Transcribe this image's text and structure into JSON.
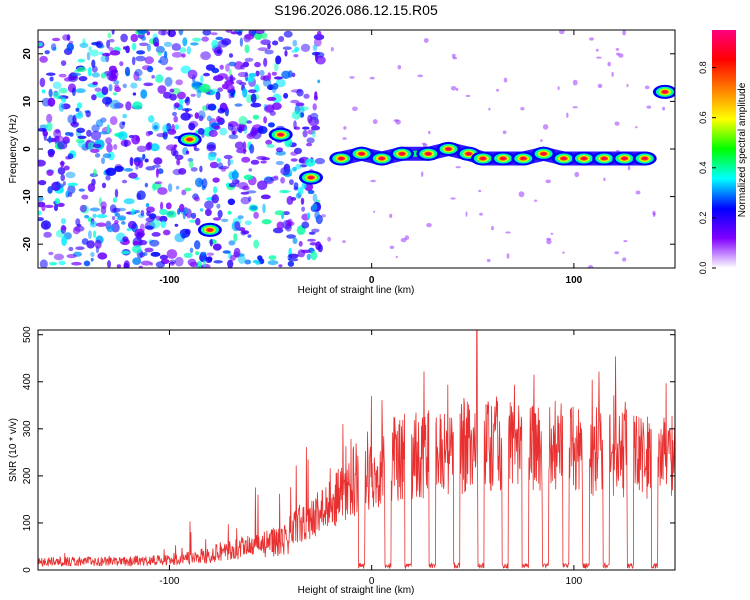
{
  "chart_data": [
    {
      "type": "heatmap",
      "title": "S196.2026.086.12.15.R05",
      "xlabel": "Height of straight line (km)",
      "ylabel": "Frequency (Hz)",
      "xlim": [
        -165,
        150
      ],
      "ylim": [
        -25,
        25
      ],
      "xticks": [
        -100,
        0,
        100
      ],
      "yticks": [
        -20,
        -10,
        0,
        10,
        20
      ],
      "colorbar": {
        "label": "Normalized spectral amplitude",
        "range": [
          0,
          0.95
        ],
        "ticks": [
          "0.0",
          "0.2",
          "0.4",
          "0.6",
          "0.8"
        ],
        "tick_values": [
          0,
          0.2,
          0.4,
          0.6,
          0.8
        ],
        "colors": [
          "#ffffff",
          "#8000ff",
          "#0000ff",
          "#00ffff",
          "#00ff00",
          "#ffff00",
          "#ff8000",
          "#ff0000",
          "#ff0080"
        ]
      },
      "noise_region": {
        "x_from": -165,
        "x_to": -25,
        "freq_from": -25,
        "freq_to": 25
      },
      "signal_peaks": [
        {
          "height": -90,
          "freq": 2
        },
        {
          "height": -80,
          "freq": -17
        },
        {
          "height": -45,
          "freq": 3
        },
        {
          "height": -30,
          "freq": -6
        },
        {
          "height": -15,
          "freq": -2
        },
        {
          "height": -5,
          "freq": -1
        },
        {
          "height": 5,
          "freq": -2
        },
        {
          "height": 15,
          "freq": -1
        },
        {
          "height": 28,
          "freq": -1
        },
        {
          "height": 38,
          "freq": 0
        },
        {
          "height": 48,
          "freq": -1
        },
        {
          "height": 55,
          "freq": -2
        },
        {
          "height": 65,
          "freq": -2
        },
        {
          "height": 75,
          "freq": -2
        },
        {
          "height": 85,
          "freq": -1
        },
        {
          "height": 95,
          "freq": -2
        },
        {
          "height": 105,
          "freq": -2
        },
        {
          "height": 115,
          "freq": -2
        },
        {
          "height": 125,
          "freq": -2
        },
        {
          "height": 135,
          "freq": -2
        },
        {
          "height": 145,
          "freq": 12
        }
      ]
    },
    {
      "type": "line",
      "xlabel": "Height of straight line (km)",
      "ylabel": "SNR (10 * v/v)",
      "xlim": [
        -165,
        150
      ],
      "ylim": [
        0,
        510
      ],
      "xticks": [
        -100,
        0,
        100
      ],
      "yticks": [
        0,
        100,
        200,
        300,
        400,
        500
      ],
      "color": "#e83030",
      "envelope_x": [
        -165,
        -120,
        -100,
        -85,
        -75,
        -60,
        -50,
        -40,
        -30,
        -20,
        -10,
        0,
        10,
        20,
        30,
        40,
        50,
        60,
        70,
        80,
        90,
        100,
        110,
        120,
        130,
        140,
        150
      ],
      "envelope_y": [
        22,
        24,
        26,
        35,
        50,
        60,
        70,
        95,
        120,
        160,
        200,
        230,
        260,
        270,
        280,
        290,
        295,
        300,
        290,
        285,
        290,
        280,
        285,
        280,
        270,
        260,
        280
      ],
      "dip_centers": [
        -5,
        8,
        18,
        30,
        42,
        54,
        66,
        76,
        86,
        96,
        106,
        116,
        128,
        140
      ],
      "peak_value": 510,
      "peak_height": 52
    }
  ]
}
